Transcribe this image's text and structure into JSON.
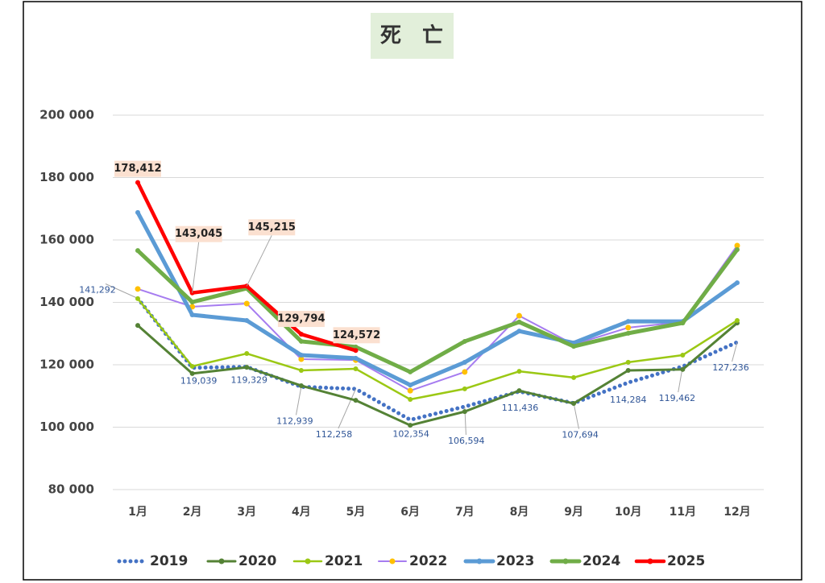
{
  "chart_data": {
    "type": "line",
    "title": "死　亡",
    "categories": [
      "1月",
      "2月",
      "3月",
      "4月",
      "5月",
      "6月",
      "7月",
      "8月",
      "9月",
      "10月",
      "11月",
      "12月"
    ],
    "ylim": [
      80000,
      200000
    ],
    "yticks": [
      {
        "value": 80000,
        "label": "80 000"
      },
      {
        "value": 100000,
        "label": "100 000"
      },
      {
        "value": 120000,
        "label": "120 000"
      },
      {
        "value": 140000,
        "label": "140 000"
      },
      {
        "value": 160000,
        "label": "160 000"
      },
      {
        "value": 180000,
        "label": "180 000"
      },
      {
        "value": 200000,
        "label": "200 000"
      }
    ],
    "grid": true,
    "legend": "bottom",
    "series": [
      {
        "name": "2019",
        "color": "#4472c4",
        "values": [
          141292,
          119039,
          119329,
          112939,
          112258,
          102354,
          106594,
          111436,
          107694,
          114284,
          119462,
          127236
        ],
        "value_labels": [
          "141,292",
          "119,039",
          "119,329",
          "112,939",
          "112,258",
          "102,354",
          "106,594",
          "111,436",
          "107,694",
          "114,284",
          "119,462",
          "127,236"
        ]
      },
      {
        "name": "2020",
        "color": "#548235",
        "values": [
          132600,
          117200,
          119200,
          113300,
          108600,
          100600,
          105000,
          111700,
          107600,
          118200,
          118500,
          133400
        ]
      },
      {
        "name": "2021",
        "color": "#9bc814",
        "values": [
          141200,
          119500,
          123600,
          118200,
          118700,
          108900,
          112300,
          117900,
          115900,
          120800,
          123100,
          134200
        ]
      },
      {
        "name": "2022",
        "color": "#a67cf0",
        "marker_color": "#ffc000",
        "values": [
          144300,
          138600,
          139600,
          121800,
          121500,
          111700,
          117700,
          135700,
          126500,
          131900,
          133700,
          158200
        ]
      },
      {
        "name": "2023",
        "color": "#5b9bd5",
        "values": [
          168800,
          136000,
          134200,
          123100,
          122100,
          113500,
          120800,
          130800,
          127000,
          133900,
          133900,
          146300
        ]
      },
      {
        "name": "2024",
        "color": "#70ad47",
        "values": [
          156600,
          140100,
          144500,
          127500,
          125700,
          117700,
          127500,
          133700,
          125900,
          130100,
          133400,
          156900
        ]
      },
      {
        "name": "2025",
        "color": "#ff0000",
        "values": [
          178412,
          143045,
          145215,
          129794,
          124572,
          null,
          null,
          null,
          null,
          null,
          null,
          null
        ],
        "value_labels": [
          "178,412",
          "143,045",
          "145,215",
          "129,794",
          "124,572",
          null,
          null,
          null,
          null,
          null,
          null,
          null
        ]
      }
    ]
  }
}
